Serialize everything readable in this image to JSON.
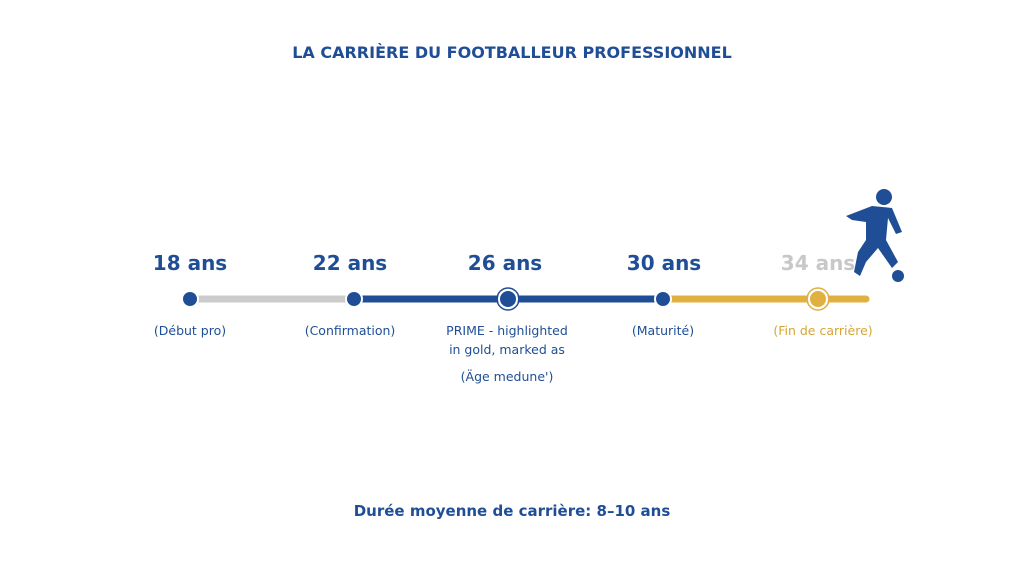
{
  "title": "LA CARRIÈRE DU FOOTBALLEUR PROFESSIONNEL",
  "milestones": [
    {
      "age": "18 ans",
      "caption": [
        "(Début pro)"
      ]
    },
    {
      "age": "22 ans",
      "caption": [
        "(Confirmation)"
      ]
    },
    {
      "age": "26 ans",
      "caption": [
        "PRIME - highlighted",
        "in gold, marked as",
        "(Äge medune')"
      ]
    },
    {
      "age": "30 ans",
      "caption": [
        "(Maturité)"
      ]
    },
    {
      "age": "34 ans",
      "caption": [
        "(Fin de carrière)"
      ]
    }
  ],
  "footer": "Durée moyenne de carrière: 8–10 ans"
}
